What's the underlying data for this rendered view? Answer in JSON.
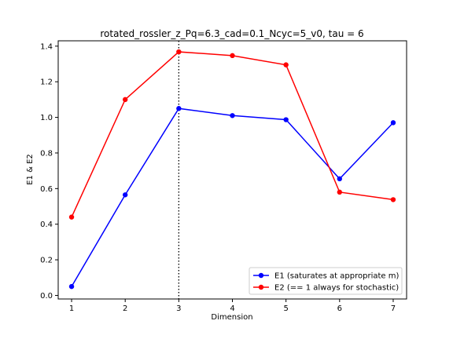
{
  "chart_data": {
    "type": "line",
    "title": "rotated_rossler_z_Pq=6.3_cad=0.1_Ncyc=5_v0, tau = 6",
    "xlabel": "Dimension",
    "ylabel": "E1 & E2",
    "xlim": [
      0.75,
      7.25
    ],
    "ylim": [
      -0.02,
      1.43
    ],
    "xticks": [
      1,
      2,
      3,
      4,
      5,
      6,
      7
    ],
    "yticks": [
      0.0,
      0.2,
      0.4,
      0.6,
      0.8,
      1.0,
      1.2,
      1.4
    ],
    "ytick_labels": [
      "0.0",
      "0.2",
      "0.4",
      "0.6",
      "0.8",
      "1.0",
      "1.2",
      "1.4"
    ],
    "x": [
      1,
      2,
      3,
      4,
      5,
      6,
      7
    ],
    "series": [
      {
        "name": "E1 (saturates at appropriate m)",
        "color": "#0000ff",
        "values": [
          0.05,
          0.565,
          1.05,
          1.01,
          0.987,
          0.655,
          0.97
        ]
      },
      {
        "name": "E2 (== 1 always for stochastic)",
        "color": "#ff0000",
        "values": [
          0.44,
          1.1,
          1.368,
          1.347,
          1.295,
          0.58,
          0.538
        ]
      }
    ],
    "vline": {
      "x": 3,
      "style": "dotted",
      "color": "#000000"
    },
    "legend_position": "lower-right",
    "grid": false
  }
}
